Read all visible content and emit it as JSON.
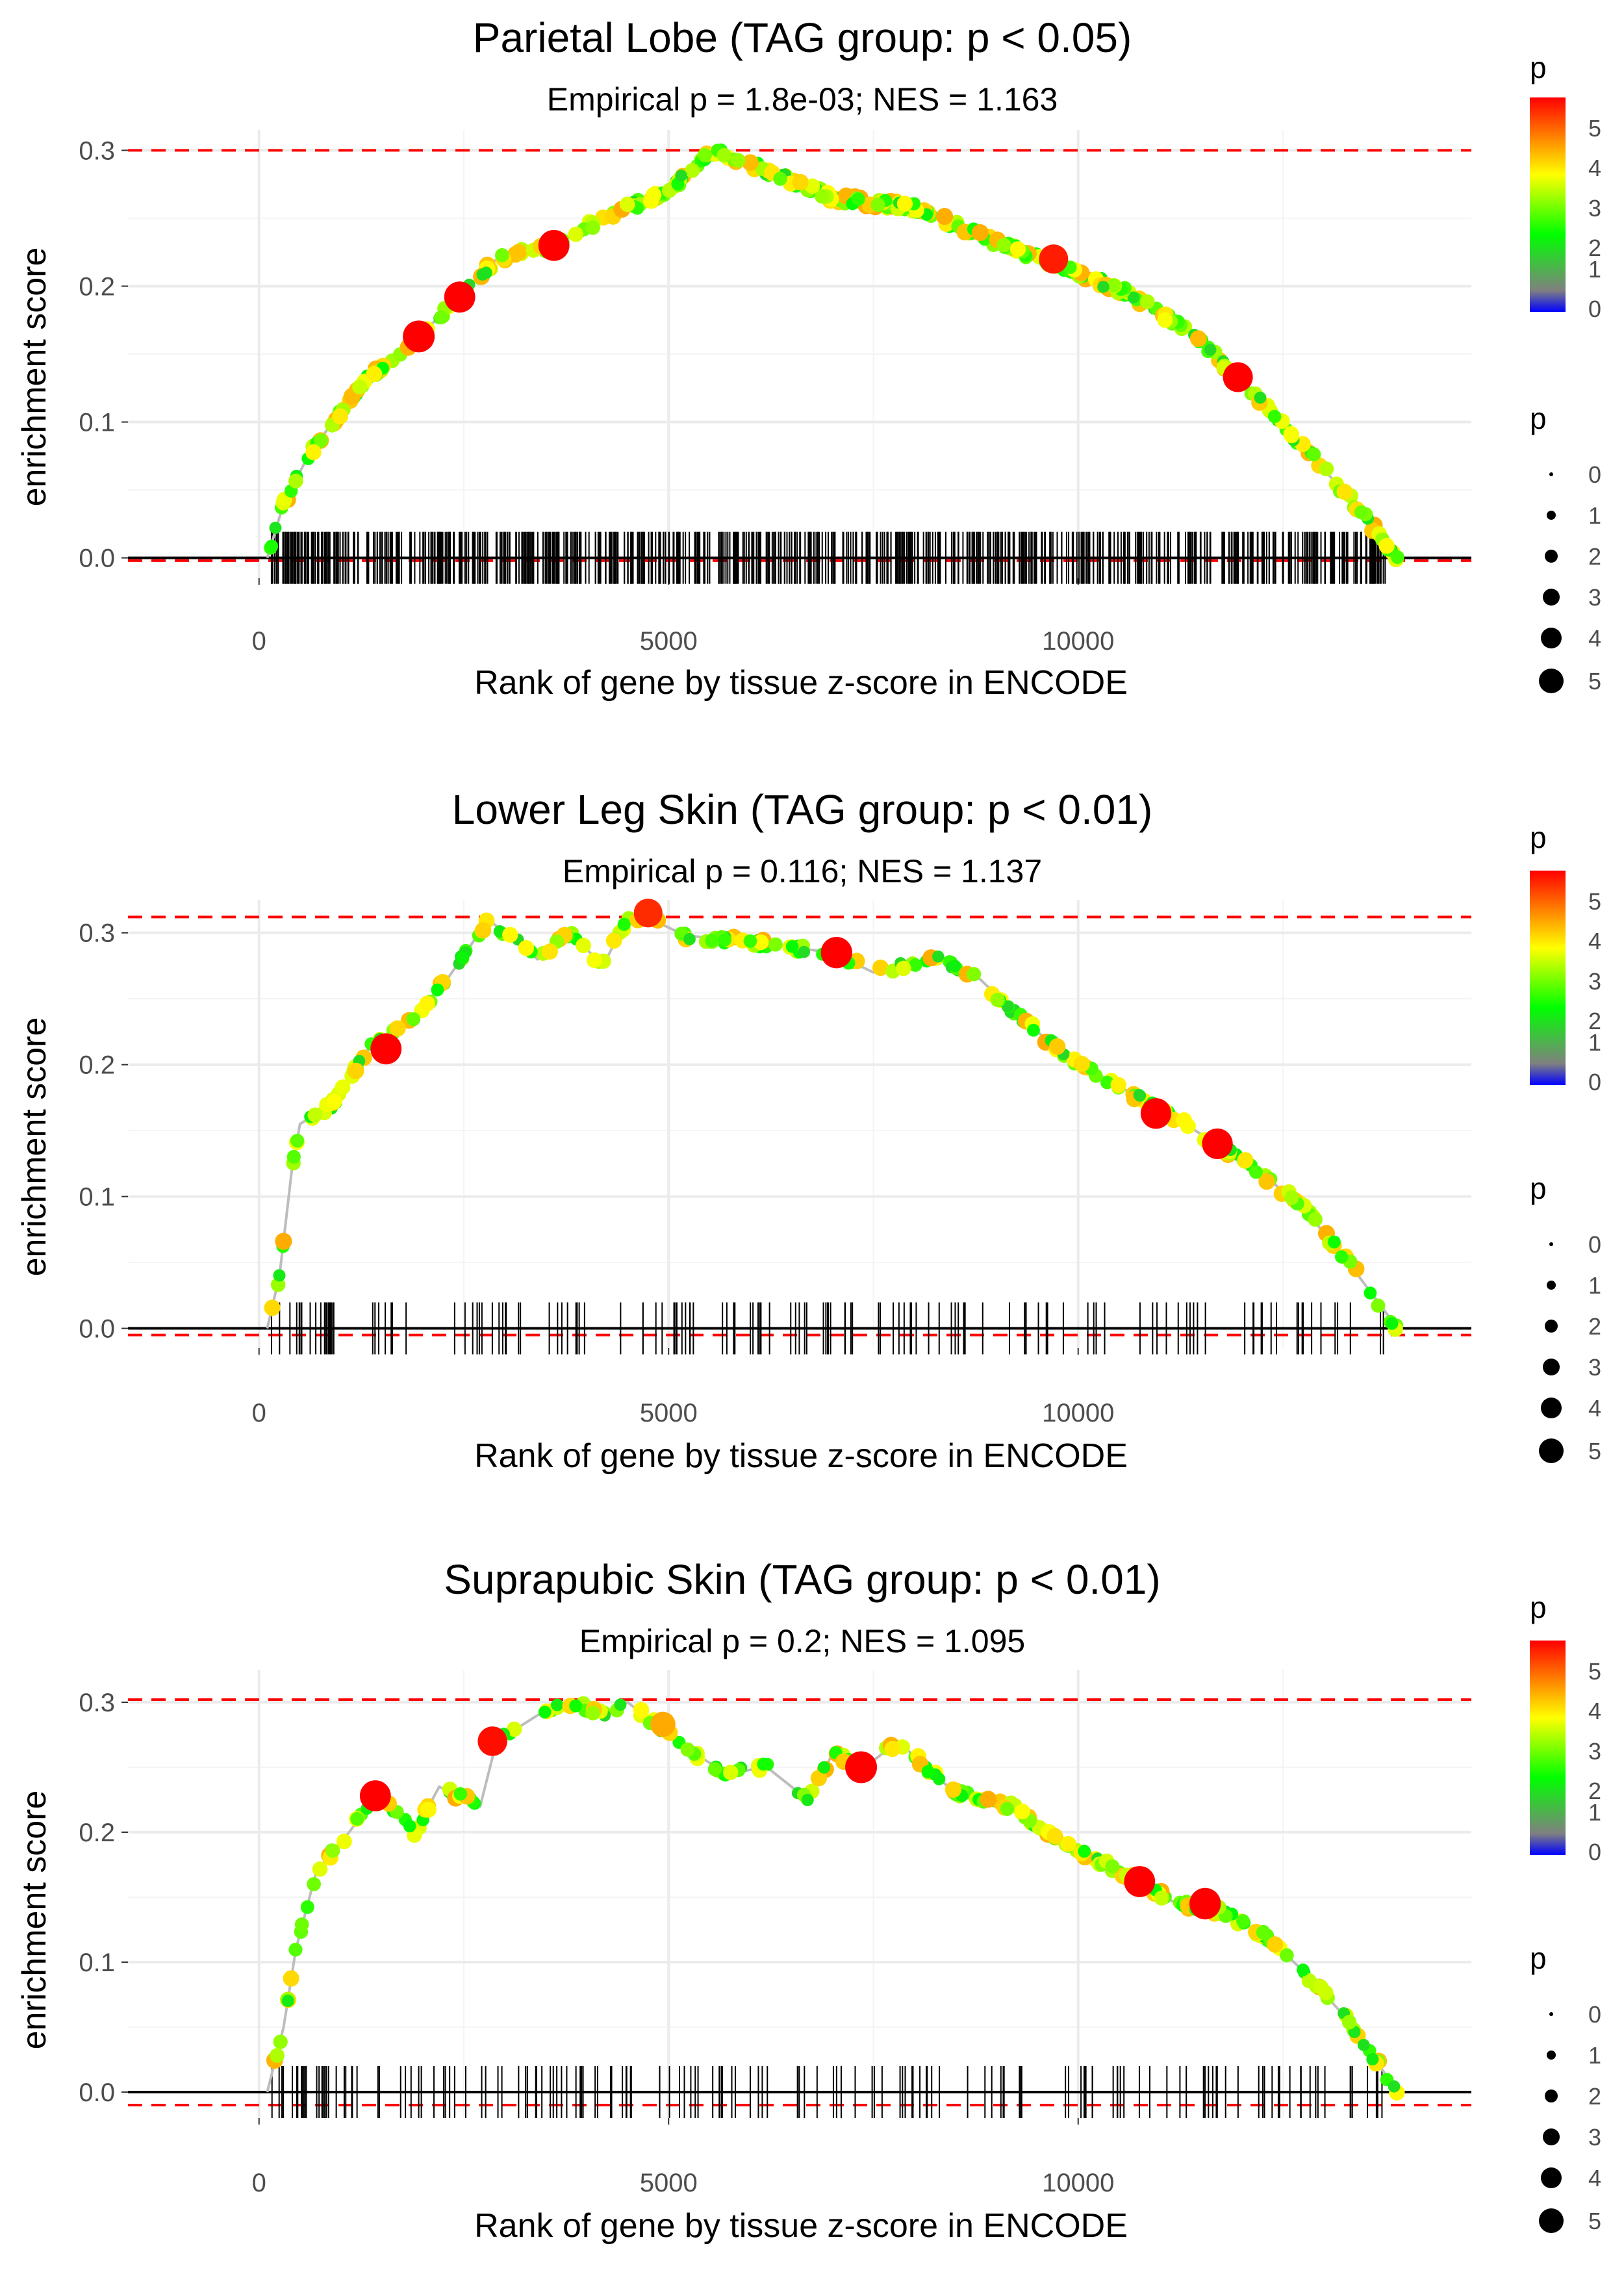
{
  "colors": {
    "grid": "#ebebeb",
    "curve_line": "#bdbdbd",
    "es_ref_line": "#ff0000",
    "zero_line": "#000000",
    "ticks": "#000000",
    "scale": [
      "#0000ff",
      "#808080",
      "#00ff00",
      "#ffff00",
      "#ff0000"
    ]
  },
  "chart_data": [
    {
      "type": "line",
      "title": "Parietal Lobe (TAG group: p < 0.05)",
      "subtitle": "Empirical p = 1.8e-03; NES = 1.163",
      "xlabel": "Rank of gene by tissue z-score in ENCODE",
      "ylabel": "enrichment score",
      "xlim": [
        -1600,
        14800
      ],
      "ylim": [
        -0.015,
        0.315
      ],
      "x_ticks": [
        0,
        5000,
        10000
      ],
      "x_tick_labels": [
        "0",
        "5000",
        "10000"
      ],
      "y_ticks": [
        0.0,
        0.1,
        0.2,
        0.3
      ],
      "y_tick_labels": [
        "0.0",
        "0.1",
        "0.2",
        "0.3"
      ],
      "max_es": 0.3,
      "min_es": -0.002,
      "n_genes": 14000,
      "n_hits": 700,
      "point_density": 1.6,
      "seed": 11,
      "curve": [
        [
          100,
          0
        ],
        [
          300,
          0.04
        ],
        [
          600,
          0.075
        ],
        [
          900,
          0.1
        ],
        [
          1300,
          0.13
        ],
        [
          1900,
          0.16
        ],
        [
          2500,
          0.195
        ],
        [
          2900,
          0.22
        ],
        [
          3600,
          0.23
        ],
        [
          4200,
          0.25
        ],
        [
          5000,
          0.27
        ],
        [
          5550,
          0.3
        ],
        [
          6200,
          0.285
        ],
        [
          7000,
          0.265
        ],
        [
          8000,
          0.258
        ],
        [
          9000,
          0.232
        ],
        [
          9800,
          0.215
        ],
        [
          10600,
          0.195
        ],
        [
          11400,
          0.165
        ],
        [
          12000,
          0.13
        ],
        [
          12700,
          0.085
        ],
        [
          13300,
          0.045
        ],
        [
          13900,
          0
        ]
      ],
      "highlights": [
        [
          1950,
          0.163,
          5.5
        ],
        [
          2450,
          0.192,
          5.3
        ],
        [
          3600,
          0.23,
          5.3
        ],
        [
          9700,
          0.22,
          4.8
        ],
        [
          11950,
          0.133,
          5.0
        ]
      ],
      "legend": {
        "color_title": "p",
        "color_labels": [
          "5",
          "4",
          "3",
          "2",
          "1",
          "0"
        ],
        "size_title": "p",
        "size_labels": [
          "0",
          "1",
          "2",
          "3",
          "4",
          "5"
        ]
      }
    },
    {
      "type": "line",
      "title": "Lower Leg Skin (TAG group: p < 0.01)",
      "subtitle": "Empirical p = 0.116; NES = 1.137",
      "xlabel": "Rank of gene by tissue z-score in ENCODE",
      "ylabel": "enrichment score",
      "xlim": [
        -1600,
        14800
      ],
      "ylim": [
        -0.015,
        0.325
      ],
      "x_ticks": [
        0,
        5000,
        10000
      ],
      "x_tick_labels": [
        "0",
        "5000",
        "10000"
      ],
      "y_ticks": [
        0.0,
        0.1,
        0.2,
        0.3
      ],
      "y_tick_labels": [
        "0.0",
        "0.1",
        "0.2",
        "0.3"
      ],
      "max_es": 0.312,
      "min_es": -0.005,
      "n_genes": 14000,
      "n_hits": 150,
      "point_density": 1.0,
      "seed": 23,
      "curve": [
        [
          100,
          0
        ],
        [
          250,
          0.04
        ],
        [
          400,
          0.12
        ],
        [
          500,
          0.155
        ],
        [
          900,
          0.17
        ],
        [
          1300,
          0.21
        ],
        [
          1800,
          0.23
        ],
        [
          2300,
          0.265
        ],
        [
          2800,
          0.31
        ],
        [
          3400,
          0.28
        ],
        [
          3800,
          0.3
        ],
        [
          4200,
          0.275
        ],
        [
          4500,
          0.312
        ],
        [
          4800,
          0.31
        ],
        [
          5200,
          0.298
        ],
        [
          6000,
          0.293
        ],
        [
          7000,
          0.285
        ],
        [
          7500,
          0.27
        ],
        [
          8300,
          0.28
        ],
        [
          8800,
          0.265
        ],
        [
          9300,
          0.235
        ],
        [
          9900,
          0.205
        ],
        [
          10600,
          0.18
        ],
        [
          11300,
          0.155
        ],
        [
          12000,
          0.128
        ],
        [
          12700,
          0.095
        ],
        [
          13300,
          0.05
        ],
        [
          13900,
          0
        ]
      ],
      "highlights": [
        [
          1550,
          0.212,
          5.3
        ],
        [
          4750,
          0.315,
          4.7
        ],
        [
          7050,
          0.285,
          5.4
        ],
        [
          10950,
          0.163,
          5.2
        ],
        [
          11700,
          0.14,
          5.2
        ]
      ],
      "legend": {
        "color_title": "p",
        "color_labels": [
          "5",
          "4",
          "3",
          "2",
          "1",
          "0"
        ],
        "size_title": "p",
        "size_labels": [
          "0",
          "1",
          "2",
          "3",
          "4",
          "5"
        ]
      }
    },
    {
      "type": "line",
      "title": "Suprapubic Skin (TAG group: p < 0.01)",
      "subtitle": "Empirical p = 0.2; NES = 1.095",
      "xlabel": "Rank of gene by tissue z-score in ENCODE",
      "ylabel": "enrichment score",
      "xlim": [
        -1600,
        14800
      ],
      "ylim": [
        -0.02,
        0.325
      ],
      "x_ticks": [
        0,
        5000,
        10000
      ],
      "x_tick_labels": [
        "0",
        "5000",
        "10000"
      ],
      "y_ticks": [
        0.0,
        0.1,
        0.2,
        0.3
      ],
      "y_tick_labels": [
        "0.0",
        "0.1",
        "0.2",
        "0.3"
      ],
      "max_es": 0.302,
      "min_es": -0.01,
      "n_genes": 14000,
      "n_hits": 170,
      "point_density": 1.0,
      "seed": 37,
      "curve": [
        [
          100,
          0
        ],
        [
          300,
          0.05
        ],
        [
          450,
          0.11
        ],
        [
          700,
          0.17
        ],
        [
          1100,
          0.2
        ],
        [
          1450,
          0.23
        ],
        [
          1900,
          0.2
        ],
        [
          2200,
          0.235
        ],
        [
          2700,
          0.22
        ],
        [
          2900,
          0.27
        ],
        [
          3400,
          0.29
        ],
        [
          3800,
          0.3
        ],
        [
          4200,
          0.29
        ],
        [
          4500,
          0.3
        ],
        [
          5100,
          0.27
        ],
        [
          5700,
          0.245
        ],
        [
          6200,
          0.25
        ],
        [
          6700,
          0.225
        ],
        [
          7000,
          0.26
        ],
        [
          7400,
          0.25
        ],
        [
          7800,
          0.27
        ],
        [
          8500,
          0.23
        ],
        [
          9200,
          0.22
        ],
        [
          9800,
          0.19
        ],
        [
          10200,
          0.18
        ],
        [
          10800,
          0.16
        ],
        [
          11200,
          0.145
        ],
        [
          11700,
          0.14
        ],
        [
          12300,
          0.12
        ],
        [
          12800,
          0.09
        ],
        [
          13300,
          0.055
        ],
        [
          13900,
          0
        ]
      ],
      "highlights": [
        [
          1420,
          0.228,
          5.3
        ],
        [
          2850,
          0.27,
          4.9
        ],
        [
          7350,
          0.25,
          5.5
        ],
        [
          10750,
          0.162,
          5.3
        ],
        [
          11550,
          0.145,
          5.4
        ],
        [
          4930,
          0.283,
          3.8
        ]
      ],
      "legend": {
        "color_title": "p",
        "color_labels": [
          "5",
          "4",
          "3",
          "2",
          "1",
          "0"
        ],
        "size_title": "p",
        "size_labels": [
          "0",
          "1",
          "2",
          "3",
          "4",
          "5"
        ]
      }
    }
  ]
}
